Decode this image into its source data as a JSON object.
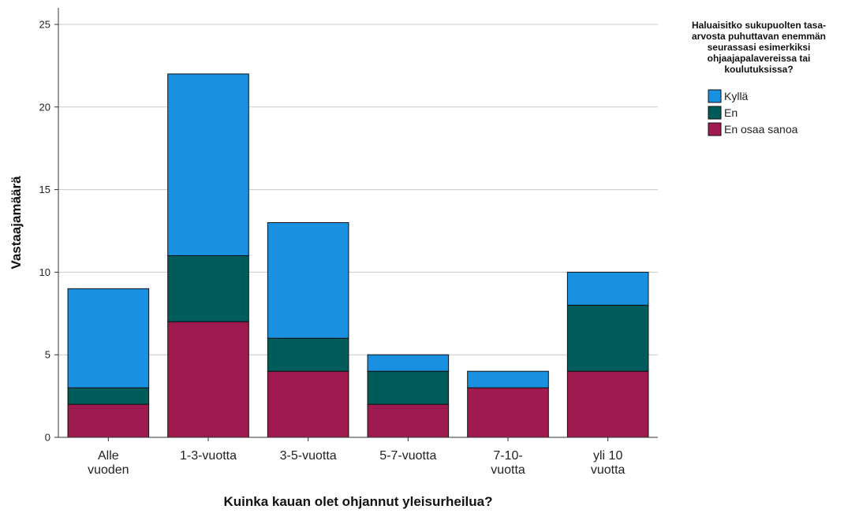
{
  "chart_data": {
    "type": "bar",
    "stacked": true,
    "categories": [
      [
        "Alle",
        "vuoden"
      ],
      [
        "1-3-vuotta"
      ],
      [
        "3-5-vuotta"
      ],
      [
        "5-7-vuotta"
      ],
      [
        "7-10-",
        "vuotta"
      ],
      [
        "yli 10",
        "vuotta"
      ]
    ],
    "series": [
      {
        "name": "En osaa sanoa",
        "color": "#9e1a4f",
        "values": [
          2,
          7,
          4,
          2,
          3,
          4
        ]
      },
      {
        "name": "En",
        "color": "#005b5b",
        "values": [
          1,
          4,
          2,
          2,
          0,
          4
        ]
      },
      {
        "name": "Kyllä",
        "color": "#1a90e0",
        "values": [
          6,
          11,
          7,
          1,
          1,
          2
        ]
      }
    ],
    "legend_order": [
      "Kyllä",
      "En",
      "En osaa sanoa"
    ],
    "legend_title": [
      "Haluaisitko sukupuolten tasa-",
      "arvosta puhuttavan enemmän",
      "seurassasi esimerkiksi",
      "ohjaajapalavereissa tai",
      "koulutuksissa?"
    ],
    "xlabel": "Kuinka kauan olet ohjannut yleisurheilua?",
    "ylabel": "Vastaajamäärä",
    "ylim": [
      0,
      26
    ],
    "yticks": [
      0,
      5,
      10,
      15,
      20,
      25
    ],
    "grid": true,
    "legend_position": "top-right"
  }
}
